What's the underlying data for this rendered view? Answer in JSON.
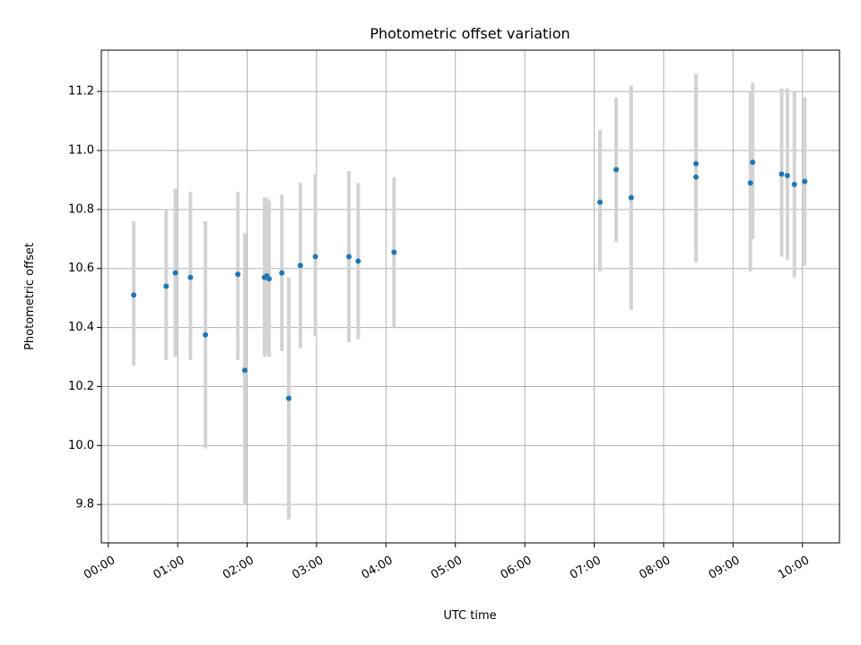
{
  "chart_data": {
    "type": "scatter",
    "title": "Photometric offset variation",
    "xlabel": "UTC time",
    "ylabel": "Photometric offset",
    "xlim": [
      "23:54",
      "10:32"
    ],
    "ylim": [
      9.67,
      11.34
    ],
    "grid": true,
    "legend": "none",
    "x_ticks": [
      "00:00",
      "01:00",
      "02:00",
      "03:00",
      "04:00",
      "05:00",
      "06:00",
      "07:00",
      "08:00",
      "09:00",
      "10:00"
    ],
    "y_ticks": [
      "9.8",
      "10.0",
      "10.2",
      "10.4",
      "10.6",
      "10.8",
      "11.0",
      "11.2"
    ],
    "colors": {
      "point": "#1f77b4",
      "errorbar": "#d3d3d3",
      "grid": "#b0b0b0"
    },
    "points": [
      {
        "x": "00:22",
        "y": 10.51,
        "ymin": 10.27,
        "ymax": 10.76
      },
      {
        "x": "00:50",
        "y": 10.54,
        "ymin": 10.29,
        "ymax": 10.8
      },
      {
        "x": "00:58",
        "y": 10.585,
        "ymin": 10.3,
        "ymax": 10.87
      },
      {
        "x": "01:11",
        "y": 10.57,
        "ymin": 10.29,
        "ymax": 10.86
      },
      {
        "x": "01:24",
        "y": 10.375,
        "ymin": 9.99,
        "ymax": 10.76
      },
      {
        "x": "01:52",
        "y": 10.58,
        "ymin": 10.29,
        "ymax": 10.86
      },
      {
        "x": "01:58",
        "y": 10.255,
        "ymin": 9.8,
        "ymax": 10.72
      },
      {
        "x": "02:15",
        "y": 10.57,
        "ymin": 10.3,
        "ymax": 10.84
      },
      {
        "x": "02:17",
        "y": 10.575,
        "ymin": 10.31,
        "ymax": 10.84
      },
      {
        "x": "02:19",
        "y": 10.565,
        "ymin": 10.3,
        "ymax": 10.83
      },
      {
        "x": "02:30",
        "y": 10.585,
        "ymin": 10.32,
        "ymax": 10.85
      },
      {
        "x": "02:36",
        "y": 10.16,
        "ymin": 9.75,
        "ymax": 10.57
      },
      {
        "x": "02:46",
        "y": 10.61,
        "ymin": 10.33,
        "ymax": 10.89
      },
      {
        "x": "02:59",
        "y": 10.64,
        "ymin": 10.37,
        "ymax": 10.92
      },
      {
        "x": "03:28",
        "y": 10.64,
        "ymin": 10.35,
        "ymax": 10.93
      },
      {
        "x": "03:36",
        "y": 10.625,
        "ymin": 10.36,
        "ymax": 10.89
      },
      {
        "x": "04:07",
        "y": 10.655,
        "ymin": 10.4,
        "ymax": 10.91
      },
      {
        "x": "07:05",
        "y": 10.825,
        "ymin": 10.59,
        "ymax": 11.07
      },
      {
        "x": "07:19",
        "y": 10.935,
        "ymin": 10.69,
        "ymax": 11.18
      },
      {
        "x": "07:32",
        "y": 10.84,
        "ymin": 10.46,
        "ymax": 11.22
      },
      {
        "x": "08:28",
        "y": 10.955,
        "ymin": 10.65,
        "ymax": 11.26
      },
      {
        "x": "08:28",
        "y": 10.91,
        "ymin": 10.62,
        "ymax": 11.2
      },
      {
        "x": "09:15",
        "y": 10.89,
        "ymin": 10.59,
        "ymax": 11.2
      },
      {
        "x": "09:17",
        "y": 10.96,
        "ymin": 10.7,
        "ymax": 11.23
      },
      {
        "x": "09:42",
        "y": 10.92,
        "ymin": 10.64,
        "ymax": 11.21
      },
      {
        "x": "09:47",
        "y": 10.915,
        "ymin": 10.63,
        "ymax": 11.21
      },
      {
        "x": "09:53",
        "y": 10.885,
        "ymin": 10.57,
        "ymax": 11.2
      },
      {
        "x": "10:02",
        "y": 10.895,
        "ymin": 10.61,
        "ymax": 11.18
      }
    ]
  }
}
